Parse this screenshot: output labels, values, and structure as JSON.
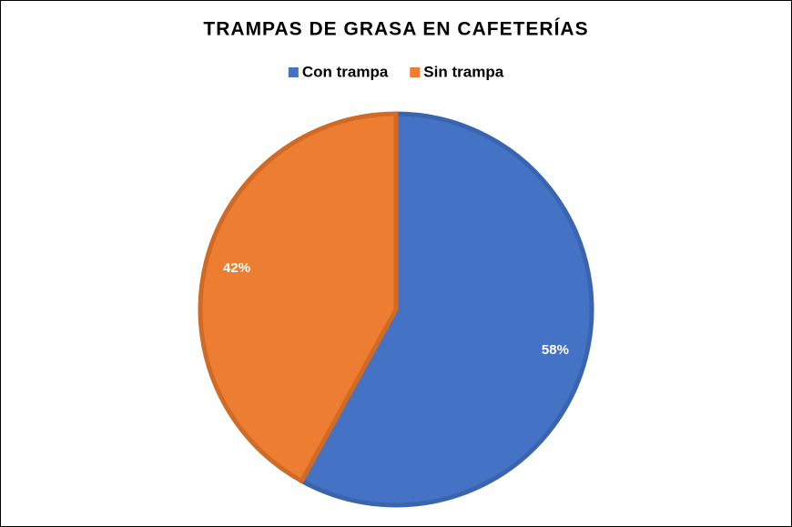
{
  "chart_data": {
    "type": "pie",
    "title": "TRAMPAS DE GRASA EN CAFETERÍAS",
    "categories": [
      "Con trampa",
      "Sin trampa"
    ],
    "values": [
      58,
      42
    ],
    "value_labels": [
      "58%",
      "42%"
    ],
    "colors": [
      "#4472c4",
      "#ed7d31"
    ],
    "edge_colors": [
      "#3b64ae",
      "#d06a24"
    ]
  }
}
